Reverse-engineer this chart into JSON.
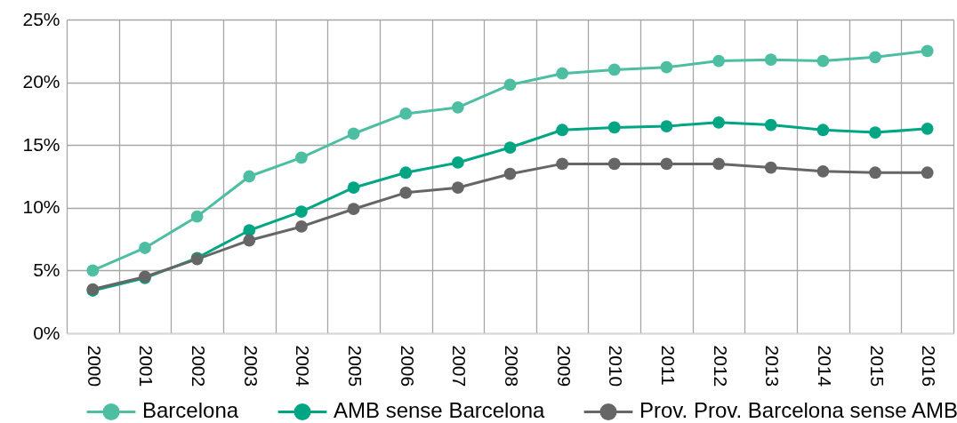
{
  "chart_data": {
    "type": "line",
    "categories": [
      "2000",
      "2001",
      "2002",
      "2003",
      "2004",
      "2005",
      "2006",
      "2007",
      "2008",
      "2009",
      "2010",
      "2011",
      "2012",
      "2013",
      "2014",
      "2015",
      "2016"
    ],
    "series": [
      {
        "name": "Barcelona",
        "color": "#4dbea1",
        "values": [
          5.0,
          6.8,
          9.3,
          12.5,
          14.0,
          15.9,
          17.5,
          18.0,
          19.8,
          20.7,
          21.0,
          21.2,
          21.7,
          21.8,
          21.7,
          22.0,
          22.5
        ]
      },
      {
        "name": "AMB sense Barcelona",
        "color": "#00a683",
        "values": [
          3.4,
          4.4,
          6.0,
          8.2,
          9.7,
          11.6,
          12.8,
          13.6,
          14.8,
          16.2,
          16.4,
          16.5,
          16.8,
          16.6,
          16.2,
          16.0,
          16.3
        ]
      },
      {
        "name": "Prov. Prov. Barcelona sense AMB",
        "color": "#666666",
        "values": [
          3.5,
          4.5,
          5.9,
          7.4,
          8.5,
          9.9,
          11.2,
          11.6,
          12.7,
          13.5,
          13.5,
          13.5,
          13.5,
          13.2,
          12.9,
          12.8,
          12.8
        ]
      }
    ],
    "ylim": [
      0,
      25
    ],
    "yticks": [
      {
        "value": 0,
        "label": "0%"
      },
      {
        "value": 5,
        "label": "5%"
      },
      {
        "value": 10,
        "label": "10%"
      },
      {
        "value": 15,
        "label": "15%"
      },
      {
        "value": 20,
        "label": "20%"
      },
      {
        "value": 25,
        "label": "25%"
      }
    ],
    "grid": true,
    "legend": "bottom",
    "marker": "circle",
    "line_style": "solid"
  }
}
